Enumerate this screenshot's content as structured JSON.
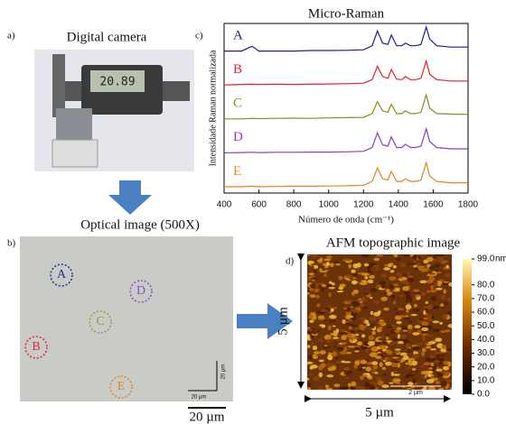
{
  "panels": {
    "a": {
      "label": "a)",
      "title": "Digital camera",
      "display": "20.89"
    },
    "b": {
      "label": "b)",
      "title": "Optical image (500X)",
      "spots": [
        {
          "name": "A",
          "color": "#2a2a8c"
        },
        {
          "name": "B",
          "color": "#e02a2a"
        },
        {
          "name": "C",
          "color": "#9a9a3a"
        },
        {
          "name": "D",
          "color": "#8a4fc0"
        },
        {
          "name": "E",
          "color": "#e8822a"
        }
      ],
      "scale_inner": "20 µm",
      "scale_inner_vertical": "20 µm",
      "scale_bar": "20 µm"
    },
    "c": {
      "label": "c)",
      "type": "line",
      "title": "Micro-Raman",
      "x_label": "Número de onda (cm⁻¹)",
      "y_label": "Intensidade  Raman normalizada",
      "xlim": [
        400,
        1800
      ],
      "xticks": [
        400,
        600,
        800,
        1000,
        1200,
        1400,
        1600,
        1800
      ],
      "x": [
        400,
        500,
        560,
        600,
        700,
        800,
        900,
        1000,
        1100,
        1200,
        1250,
        1280,
        1310,
        1340,
        1360,
        1390,
        1420,
        1440,
        1470,
        1500,
        1530,
        1560,
        1580,
        1620,
        1700,
        1800
      ],
      "series": [
        {
          "name": "A",
          "color": "#1f1f8f",
          "values": [
            0.1,
            0.1,
            0.28,
            0.1,
            0.1,
            0.1,
            0.12,
            0.12,
            0.13,
            0.15,
            0.3,
            0.85,
            0.4,
            0.35,
            0.7,
            0.3,
            0.3,
            0.4,
            0.3,
            0.3,
            0.35,
            1.0,
            0.55,
            0.3,
            0.25,
            0.25
          ]
        },
        {
          "name": "B",
          "color": "#e8202a",
          "values": [
            0.1,
            0.12,
            0.13,
            0.12,
            0.13,
            0.12,
            0.13,
            0.14,
            0.15,
            0.17,
            0.3,
            0.8,
            0.42,
            0.35,
            0.68,
            0.32,
            0.3,
            0.42,
            0.3,
            0.3,
            0.35,
            1.0,
            0.5,
            0.3,
            0.25,
            0.25
          ]
        },
        {
          "name": "C",
          "color": "#8c8c1a",
          "values": [
            0.1,
            0.1,
            0.12,
            0.11,
            0.12,
            0.13,
            0.12,
            0.14,
            0.15,
            0.16,
            0.3,
            0.75,
            0.4,
            0.35,
            0.65,
            0.3,
            0.3,
            0.4,
            0.3,
            0.3,
            0.35,
            1.0,
            0.5,
            0.3,
            0.28,
            0.27
          ]
        },
        {
          "name": "D",
          "color": "#8a3fbf",
          "values": [
            0.1,
            0.11,
            0.12,
            0.11,
            0.12,
            0.12,
            0.13,
            0.13,
            0.14,
            0.16,
            0.3,
            0.85,
            0.4,
            0.35,
            0.7,
            0.3,
            0.3,
            0.42,
            0.3,
            0.3,
            0.35,
            1.0,
            0.52,
            0.3,
            0.25,
            0.25
          ]
        },
        {
          "name": "E",
          "color": "#e8821e",
          "values": [
            0.1,
            0.1,
            0.12,
            0.1,
            0.11,
            0.12,
            0.12,
            0.13,
            0.14,
            0.16,
            0.3,
            0.8,
            0.4,
            0.35,
            0.68,
            0.3,
            0.3,
            0.4,
            0.3,
            0.3,
            0.35,
            1.0,
            0.5,
            0.3,
            0.25,
            0.25
          ]
        }
      ]
    },
    "d": {
      "label": "d)",
      "title": "AFM topographic image",
      "side_vertical": "5 µm",
      "side_horizontal": "5 µm",
      "scale_inner": "2 µm",
      "colorbar": {
        "lim": [
          0,
          99
        ],
        "unit": "nm",
        "ticks": [
          {
            "value": 99,
            "label": "99.0"
          },
          {
            "value": 80,
            "label": "80.0"
          },
          {
            "value": 70,
            "label": "70.0"
          },
          {
            "value": 60,
            "label": "60.0"
          },
          {
            "value": 50,
            "label": "50.0"
          },
          {
            "value": 40,
            "label": "40.0"
          },
          {
            "value": 30,
            "label": "30.0"
          },
          {
            "value": 20,
            "label": "20.0"
          },
          {
            "value": 10,
            "label": "10.0"
          },
          {
            "value": 0,
            "label": "0.0"
          }
        ]
      }
    }
  }
}
